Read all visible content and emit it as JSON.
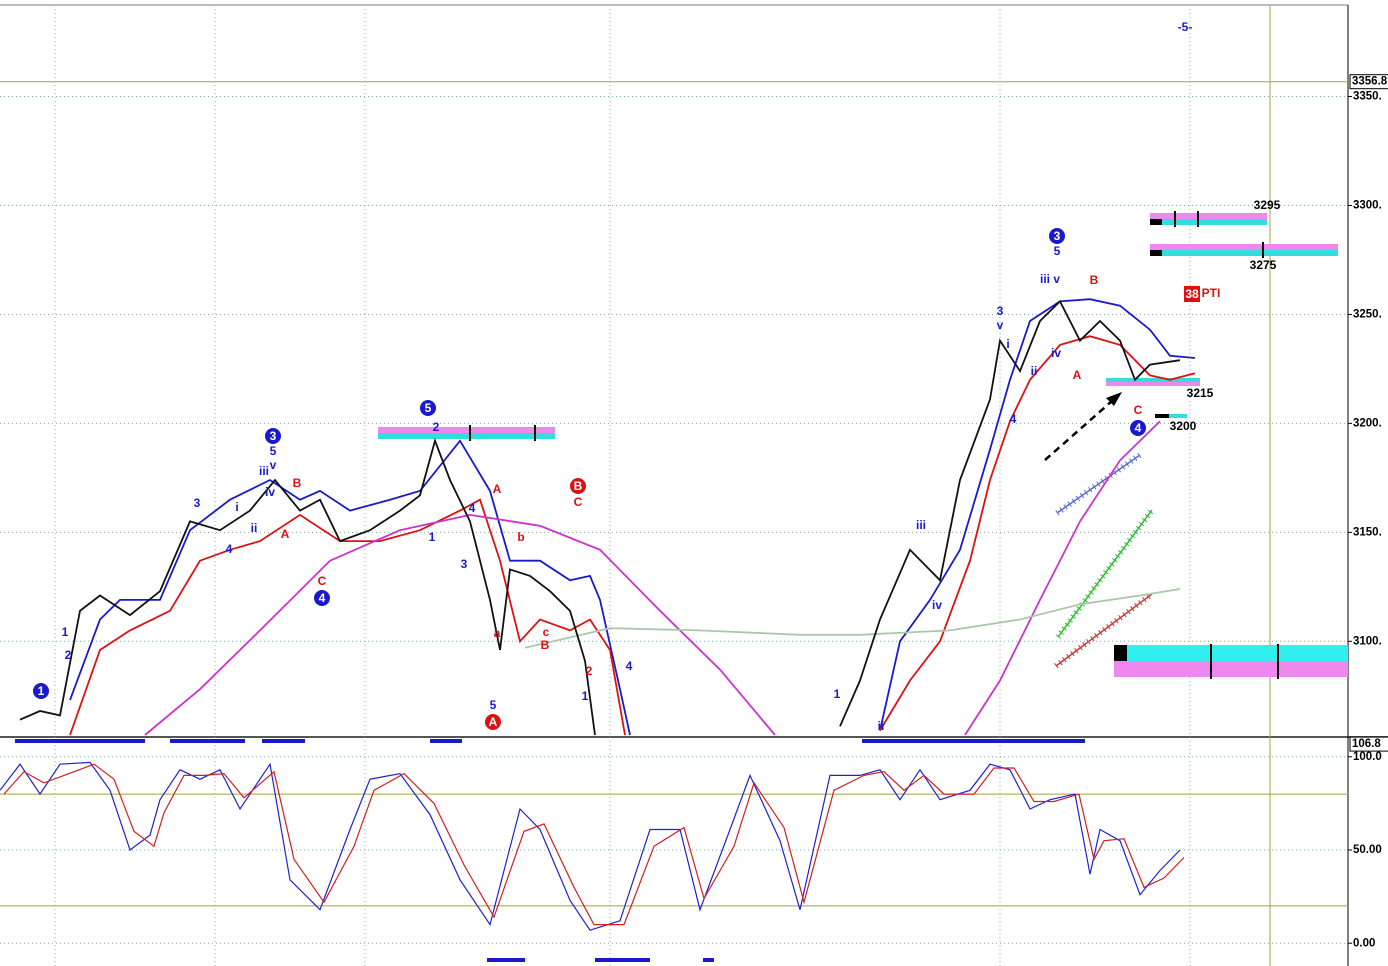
{
  "chart_data": [
    {
      "type": "line",
      "xlim": [
        0,
        337
      ],
      "ylim": [
        3057,
        3392
      ],
      "yticks": [
        {
          "value": 3350,
          "label": "3350."
        },
        {
          "value": 3300,
          "label": "3300."
        },
        {
          "value": 3250,
          "label": "3250."
        },
        {
          "value": 3200,
          "label": "3200."
        },
        {
          "value": 3150,
          "label": "3150."
        },
        {
          "value": 3100,
          "label": "3100."
        }
      ],
      "last_value": 3356.8,
      "grid": true,
      "series": [
        {
          "color": "#1a1acc",
          "x": [
            17.5,
            25,
            30,
            40,
            47.5,
            57.5,
            67.5,
            75,
            80,
            87.5,
            97.5,
            105,
            115,
            122.5,
            127.5,
            135,
            142.5,
            147.5,
            150,
            155,
            157.5,
            190,
            220,
            225,
            232.5,
            240,
            247.5,
            252.5,
            257.5,
            265,
            272.5,
            280,
            287.5,
            292.5,
            298.75
          ],
          "values": [
            3073,
            3110,
            3119,
            3119,
            3151,
            3165,
            3174,
            3165,
            3169,
            3160,
            3165,
            3169,
            3192,
            3169,
            3137,
            3137,
            3128,
            3130,
            3119,
            3078,
            3057,
            null,
            3059,
            3100,
            3119,
            3142,
            3188,
            3220,
            3247,
            3256,
            3257,
            3254,
            3243,
            3231,
            3230
          ]
        },
        {
          "color": "#dd1111",
          "x": [
            17.5,
            25,
            32.5,
            42.5,
            50,
            57.5,
            65,
            75,
            85,
            95,
            105,
            115,
            120,
            125,
            130,
            135,
            142.5,
            147.5,
            152.5,
            156.25,
            190,
            220,
            227.5,
            235,
            242.5,
            247.5,
            252.5,
            257.5,
            265,
            272.5,
            280,
            287.5,
            292.5,
            298.75
          ],
          "values": [
            3057,
            3096,
            3105,
            3114,
            3137,
            3142,
            3146,
            3158,
            3146,
            3146,
            3151,
            3160,
            3165,
            3137,
            3100,
            3110,
            3105,
            3110,
            3096,
            3057,
            null,
            3059,
            3082,
            3100,
            3137,
            3174,
            3201,
            3220,
            3236,
            3240,
            3236,
            3222,
            3220,
            3223
          ]
        },
        {
          "color": "#cc33cc",
          "x": [
            36.25,
            50,
            65,
            82.5,
            100,
            117.5,
            135,
            150,
            165,
            180,
            193.75,
            215,
            241.25,
            250,
            260,
            270,
            280,
            290
          ],
          "values": [
            3057,
            3078,
            3105,
            3137,
            3151,
            3158,
            3153,
            3142,
            3114,
            3087,
            3057,
            null,
            3057,
            3082,
            3119,
            3155,
            3183,
            3201
          ]
        },
        {
          "color": "#a9c9a9",
          "x": [
            131.25,
            152.5,
            175,
            200,
            215,
            237.5,
            255,
            270,
            285,
            295
          ],
          "values": [
            3097,
            3106,
            3105,
            3103,
            3103,
            3105,
            3110,
            3117,
            3121,
            3124
          ]
        },
        {
          "color": "#111111",
          "x": [
            5,
            10,
            15,
            20,
            25,
            32.5,
            40,
            47.5,
            55,
            62.5,
            68.75,
            75,
            80,
            85,
            92.5,
            100,
            105,
            108.75,
            112.5,
            117.5,
            122.5,
            125,
            127.5,
            132.5,
            137.5,
            142.5,
            146.25,
            148.75,
            180,
            210,
            215,
            220,
            227.5,
            235,
            240,
            247.5,
            250,
            255,
            260,
            265,
            270,
            275,
            280,
            283.75,
            287.5,
            295
          ],
          "values": [
            3064,
            3068,
            3066,
            3114,
            3121,
            3112,
            3123,
            3155,
            3151,
            3160,
            3174,
            3160,
            3165,
            3146,
            3151,
            3160,
            3167,
            3192,
            3174,
            3155,
            3119,
            3096,
            3133,
            3130,
            3123,
            3114,
            3091,
            3057,
            null,
            3061,
            3082,
            3110,
            3142,
            3128,
            3174,
            3211,
            3238,
            3224,
            3247,
            3256,
            3238,
            3247,
            3238,
            3220,
            3227,
            3229
          ]
        }
      ],
      "annotations": [
        "1",
        "1",
        "2",
        "3",
        "5",
        "v",
        "iii",
        "iv",
        "3",
        "i",
        "ii",
        "4",
        "B",
        "A",
        "C",
        "4",
        "5",
        "2",
        "1",
        "4",
        "3",
        "A",
        "b",
        "c",
        "B",
        "B",
        "C",
        "a",
        "5",
        "A",
        "2",
        "1",
        "4",
        "1",
        "ii",
        "iii",
        "iv",
        "3",
        "v",
        "i",
        "ii",
        "iv",
        "iii v",
        "5",
        "3",
        "4",
        "B",
        "A",
        "C",
        "4",
        "-5-",
        "3295",
        "3275",
        "3215",
        "3200",
        "38",
        "PTI"
      ]
    },
    {
      "type": "line",
      "xlim": [
        0,
        337
      ],
      "ylim": [
        -9,
        109
      ],
      "yticks": [
        {
          "value": 100,
          "label": "100.0"
        },
        {
          "value": 50,
          "label": "50.00"
        },
        {
          "value": 0,
          "label": "0.00"
        }
      ],
      "last_value": 106.8,
      "levels": [
        80,
        20
      ],
      "grid": true,
      "series": [
        {
          "color": "#2020d0",
          "x": [
            0,
            5,
            10,
            15,
            22.5,
            27.5,
            32.5,
            37.5,
            40,
            45,
            50,
            55,
            60,
            67.5,
            72.5,
            80,
            87.5,
            92.5,
            100,
            107.5,
            115,
            122.5,
            130,
            135,
            142.5,
            147.5,
            155,
            162.5,
            170,
            175,
            182.5,
            187.5,
            195,
            200,
            207.5,
            215,
            220,
            225,
            230,
            235,
            242.5,
            247.5,
            252.5,
            257.5,
            262.5,
            268.75,
            272.5,
            275,
            280,
            285,
            290,
            295
          ],
          "values": [
            82,
            96,
            80,
            96,
            97,
            82,
            50,
            58,
            77,
            93,
            88,
            93,
            72,
            96,
            34,
            18,
            61,
            88,
            91,
            69,
            34,
            10,
            72,
            61,
            23,
            7,
            12,
            61,
            61,
            18,
            61,
            90,
            55,
            18,
            90,
            90,
            93,
            77,
            93,
            77,
            82,
            96,
            93,
            72,
            77,
            80,
            37,
            61,
            55,
            26,
            39,
            50
          ]
        },
        {
          "color": "#d02020",
          "x": [
            1,
            6,
            11,
            16,
            23.5,
            28.5,
            33.5,
            38.5,
            41,
            46,
            51,
            56,
            61,
            68.5,
            73.5,
            81,
            88.5,
            93.5,
            101,
            108.5,
            116,
            123.5,
            131,
            136,
            143.5,
            148.5,
            156,
            163.5,
            171,
            176,
            183.5,
            188.5,
            196,
            201,
            208.5,
            216,
            221,
            226,
            231,
            236,
            243.5,
            248.5,
            253.5,
            258.5,
            263.5,
            269.75,
            273.5,
            276,
            281,
            286,
            291,
            296
          ],
          "values": [
            80,
            92,
            86,
            90,
            96,
            88,
            60,
            52,
            70,
            90,
            90,
            91,
            78,
            92,
            45,
            22,
            52,
            82,
            91,
            75,
            42,
            14,
            60,
            64,
            30,
            10,
            10,
            52,
            62,
            24,
            52,
            86,
            62,
            22,
            82,
            90,
            92,
            82,
            90,
            80,
            80,
            94,
            94,
            76,
            76,
            80,
            45,
            55,
            56,
            30,
            35,
            46
          ]
        }
      ]
    }
  ]
}
